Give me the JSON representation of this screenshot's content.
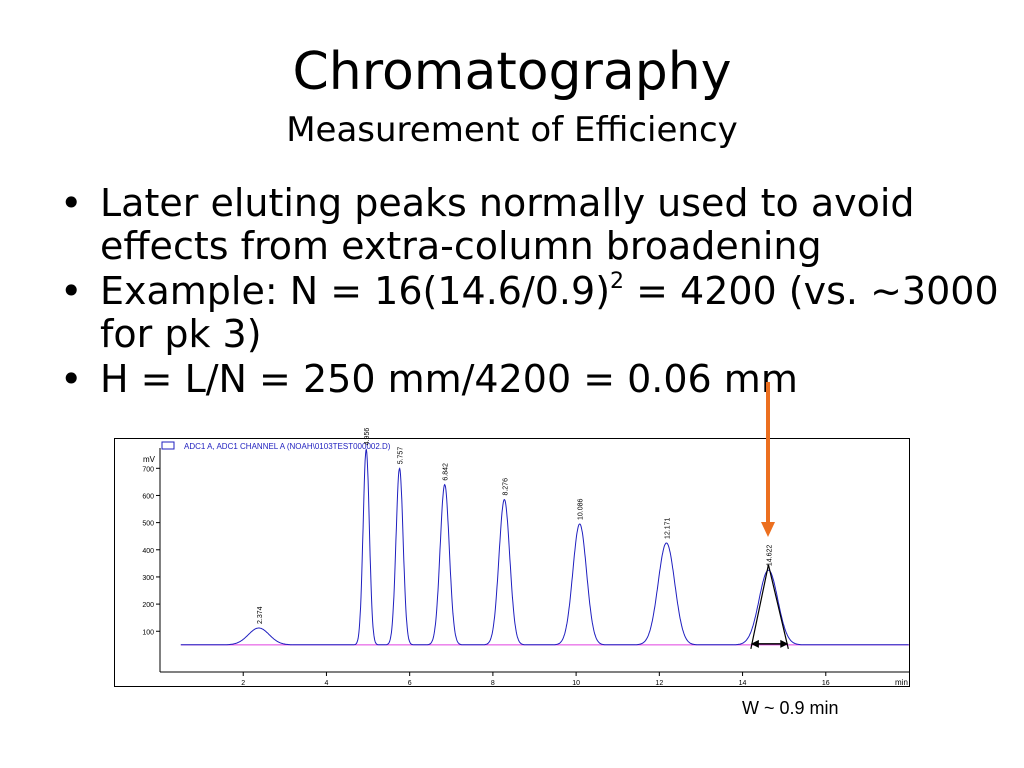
{
  "slide": {
    "title": "Chromatography",
    "subtitle": "Measurement of Efficiency",
    "bullets": [
      {
        "text": "Later eluting peaks normally used to avoid effects from extra-column broadening"
      },
      {
        "pre": "Example: N = 16(14.6/0.9)",
        "sup": "2",
        "post": " = 4200 (vs. ~3000 for pk 3)"
      },
      {
        "text": "H = L/N = 250 mm/4200 = 0.06 mm"
      }
    ],
    "bullet_glyph": "•",
    "width_annotation": "W ~ 0.9 min"
  },
  "chart_data": {
    "type": "line",
    "title": "",
    "legend": "ADC1 A, ADC1 CHANNEL A (NOAH\\0103TEST000002.D)",
    "ylabel": "mV",
    "xlabel": "min",
    "xlim": [
      0,
      18
    ],
    "ylim": [
      -50,
      760
    ],
    "xticks": [
      2,
      4,
      6,
      8,
      10,
      12,
      14,
      16
    ],
    "yticks": [
      100,
      200,
      300,
      400,
      500,
      600,
      700
    ],
    "baseline": 50,
    "peaks": [
      {
        "rt": 2.374,
        "label": "2.374",
        "height": 62,
        "sigma": 0.25
      },
      {
        "rt": 4.956,
        "label": "4.956",
        "height": 720,
        "sigma": 0.075
      },
      {
        "rt": 5.757,
        "label": "5.757",
        "height": 650,
        "sigma": 0.085
      },
      {
        "rt": 6.842,
        "label": "6.842",
        "height": 590,
        "sigma": 0.11
      },
      {
        "rt": 8.276,
        "label": "8.276",
        "height": 535,
        "sigma": 0.13
      },
      {
        "rt": 10.086,
        "label": "10.086",
        "height": 445,
        "sigma": 0.165
      },
      {
        "rt": 12.171,
        "label": "12.171",
        "height": 375,
        "sigma": 0.2
      },
      {
        "rt": 14.622,
        "label": "14.622",
        "height": 275,
        "sigma": 0.225
      }
    ],
    "width_measurement": {
      "peak": "14.622",
      "start": 14.2,
      "end": 15.1,
      "width_min": 0.9
    },
    "colors": {
      "trace": "#1f1fbf",
      "baseline": "#e040e0",
      "legend_box": "#1f1fbf",
      "arrow": "#ec6f1f",
      "axis": "#000000"
    }
  }
}
